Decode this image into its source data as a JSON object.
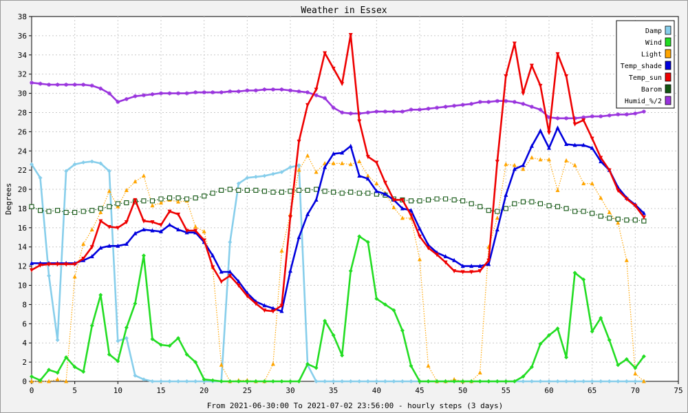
{
  "chart_data": {
    "type": "line",
    "title": "Weather in Essex",
    "xlabel": "From 2021-06-30:00 To 2021-07-02 23:56:00 - hourly steps (3 days)",
    "ylabel": "Degrees",
    "xlim": [
      0,
      75
    ],
    "ylim": [
      0,
      38
    ],
    "xticks": [
      0,
      5,
      10,
      15,
      20,
      25,
      30,
      35,
      40,
      45,
      50,
      55,
      60,
      65,
      70,
      75
    ],
    "yticks": [
      0,
      2,
      4,
      6,
      8,
      10,
      12,
      14,
      16,
      18,
      20,
      22,
      24,
      26,
      28,
      30,
      32,
      34,
      36,
      38
    ],
    "grid": true,
    "legend_position": "top-right",
    "x": [
      0,
      1,
      2,
      3,
      4,
      5,
      6,
      7,
      8,
      9,
      10,
      11,
      12,
      13,
      14,
      15,
      16,
      17,
      18,
      19,
      20,
      21,
      22,
      23,
      24,
      25,
      26,
      27,
      28,
      29,
      30,
      31,
      32,
      33,
      34,
      35,
      36,
      37,
      38,
      39,
      40,
      41,
      42,
      43,
      44,
      45,
      46,
      47,
      48,
      49,
      50,
      51,
      52,
      53,
      54,
      55,
      56,
      57,
      58,
      59,
      60,
      61,
      62,
      63,
      64,
      65,
      66,
      67,
      68,
      69,
      70,
      71
    ],
    "series": [
      {
        "name": "Damp",
        "color": "#87ceeb",
        "style": "solid",
        "marker": "diamond",
        "values": [
          22.6,
          21.2,
          11,
          4.3,
          21.9,
          22.6,
          22.8,
          22.9,
          22.7,
          21.9,
          4.2,
          4.5,
          0.6,
          0.2,
          0,
          0,
          0,
          0,
          0,
          0,
          0,
          0,
          0,
          14.5,
          20.6,
          21.2,
          21.3,
          21.4,
          21.6,
          21.8,
          22.3,
          22.5,
          1.7,
          0,
          0,
          0,
          0,
          0,
          0,
          0,
          0,
          0,
          0,
          0,
          0,
          0,
          0,
          0,
          0,
          0,
          0,
          0,
          0,
          0,
          0,
          0,
          0,
          0,
          0,
          0,
          0,
          0,
          0,
          0,
          0,
          0,
          0,
          0,
          0,
          0,
          0,
          0
        ]
      },
      {
        "name": "Wind",
        "color": "#22dd22",
        "style": "solid",
        "marker": "diamond",
        "values": [
          0.5,
          0.1,
          1.2,
          0.9,
          2.5,
          1.5,
          1.0,
          5.8,
          9.0,
          2.8,
          2.1,
          5.6,
          8.1,
          13.1,
          4.4,
          3.8,
          3.7,
          4.5,
          2.8,
          2.0,
          0.2,
          0.1,
          0,
          0,
          0,
          0,
          0,
          0,
          0,
          0,
          0,
          0,
          1.8,
          1.4,
          6.3,
          4.8,
          2.7,
          11.5,
          15.1,
          14.5,
          8.6,
          8.0,
          7.4,
          5.3,
          1.6,
          0,
          0,
          0,
          0,
          0,
          0,
          0,
          0,
          0,
          0,
          0,
          0,
          0.5,
          1.5,
          3.9,
          4.8,
          5.5,
          2.5,
          11.3,
          10.6,
          5.2,
          6.6,
          4.3,
          1.7,
          2.3,
          1.4,
          2.6
        ]
      },
      {
        "name": "Light",
        "color": "#ffa500",
        "style": "dotted",
        "marker": "triangle-up",
        "values": [
          0,
          0,
          0,
          0.2,
          0,
          10.9,
          14.3,
          15.8,
          17.6,
          19.8,
          18.2,
          19.9,
          20.8,
          21.4,
          18.3,
          18.6,
          18.9,
          18.7,
          18.8,
          16.1,
          15.6,
          11.9,
          1.7,
          0,
          0.1,
          0.1,
          0,
          0,
          1.8,
          13.6,
          17.4,
          22.0,
          23.5,
          21.8,
          22.7,
          22.7,
          22.7,
          22.6,
          22.9,
          21.4,
          20.6,
          19.6,
          18.1,
          17.0,
          17.0,
          12.7,
          1.6,
          0,
          0,
          0.2,
          0,
          0,
          0.9,
          14.0,
          17.0,
          22.6,
          22.5,
          22.1,
          23.3,
          23.1,
          23.1,
          19.9,
          23.0,
          22.5,
          20.6,
          20.6,
          19.1,
          17.6,
          16.5,
          12.6,
          0.8,
          0
        ]
      },
      {
        "name": "Temp_shade",
        "color": "#0000dd",
        "style": "solid",
        "marker": "triangle-up",
        "values": [
          12.3,
          12.3,
          12.3,
          12.3,
          12.3,
          12.3,
          12.6,
          13.0,
          13.9,
          14.1,
          14.1,
          14.3,
          15.4,
          15.8,
          15.7,
          15.6,
          16.3,
          15.8,
          15.5,
          15.5,
          14.5,
          13.1,
          11.4,
          11.4,
          10.4,
          9.2,
          8.3,
          7.9,
          7.6,
          7.3,
          11.5,
          15.0,
          17.4,
          18.9,
          22.3,
          23.7,
          23.8,
          24.5,
          21.4,
          21.1,
          19.8,
          19.5,
          18.9,
          18.0,
          17.8,
          15.9,
          14.2,
          13.4,
          13.0,
          12.6,
          12.0,
          12.0,
          12.0,
          12.2,
          15.8,
          19.4,
          22.1,
          22.5,
          24.5,
          26.1,
          24.3,
          26.4,
          24.7,
          24.6,
          24.6,
          24.3,
          22.9,
          22.0,
          20.2,
          19.1,
          18.4,
          17.5
        ]
      },
      {
        "name": "Temp_sun",
        "color": "#ee0000",
        "style": "solid",
        "marker": "triangle-down",
        "values": [
          11.6,
          12.1,
          12.2,
          12.2,
          12.2,
          12.2,
          12.8,
          14.0,
          16.7,
          16.1,
          16.0,
          16.6,
          18.9,
          16.7,
          16.6,
          16.3,
          17.7,
          17.4,
          15.7,
          15.7,
          14.7,
          11.9,
          10.4,
          11.0,
          10.0,
          8.9,
          8.1,
          7.4,
          7.3,
          7.9,
          17.1,
          25.0,
          28.8,
          30.4,
          34.2,
          32.6,
          31.0,
          36.1,
          27.1,
          23.4,
          22.8,
          20.7,
          18.9,
          18.9,
          17.3,
          15.1,
          13.9,
          13.2,
          12.4,
          11.5,
          11.4,
          11.4,
          11.5,
          12.6,
          22.9,
          31.8,
          35.2,
          30.0,
          32.9,
          30.8,
          25.9,
          34.1,
          31.8,
          26.8,
          27.2,
          25.3,
          23.3,
          22.0,
          19.9,
          19.0,
          18.3,
          17.1
        ]
      },
      {
        "name": "Barom",
        "color": "#115511",
        "style": "dotted",
        "marker": "square",
        "values": [
          18.2,
          17.8,
          17.7,
          17.8,
          17.6,
          17.6,
          17.7,
          17.8,
          18.0,
          18.2,
          18.5,
          18.6,
          18.7,
          18.8,
          18.8,
          19.0,
          19.1,
          19.1,
          19.0,
          19.1,
          19.3,
          19.6,
          19.9,
          20.0,
          19.9,
          19.9,
          19.9,
          19.8,
          19.7,
          19.7,
          19.8,
          19.9,
          19.9,
          20.0,
          19.8,
          19.7,
          19.6,
          19.7,
          19.6,
          19.6,
          19.5,
          19.4,
          19.0,
          18.9,
          18.8,
          18.8,
          18.9,
          19.0,
          19.0,
          18.9,
          18.8,
          18.5,
          18.2,
          17.8,
          17.7,
          18.0,
          18.5,
          18.7,
          18.7,
          18.5,
          18.3,
          18.2,
          18.0,
          17.7,
          17.7,
          17.5,
          17.2,
          17.0,
          16.9,
          16.8,
          16.8,
          16.7
        ]
      },
      {
        "name": "Humid_%/2",
        "color": "#9933dd",
        "style": "solid",
        "marker": "star",
        "values": [
          31.1,
          31.0,
          30.9,
          30.9,
          30.9,
          30.9,
          30.9,
          30.8,
          30.5,
          30.0,
          29.1,
          29.4,
          29.7,
          29.8,
          29.9,
          30.0,
          30.0,
          30.0,
          30.0,
          30.1,
          30.1,
          30.1,
          30.1,
          30.2,
          30.2,
          30.3,
          30.3,
          30.4,
          30.4,
          30.4,
          30.3,
          30.2,
          30.1,
          29.8,
          29.5,
          28.5,
          28.0,
          27.9,
          27.9,
          28.0,
          28.1,
          28.1,
          28.1,
          28.1,
          28.3,
          28.3,
          28.4,
          28.5,
          28.6,
          28.7,
          28.8,
          28.9,
          29.1,
          29.1,
          29.2,
          29.2,
          29.1,
          28.9,
          28.6,
          28.3,
          27.5,
          27.4,
          27.4,
          27.4,
          27.5,
          27.6,
          27.6,
          27.7,
          27.8,
          27.8,
          27.9,
          28.1
        ]
      }
    ]
  }
}
